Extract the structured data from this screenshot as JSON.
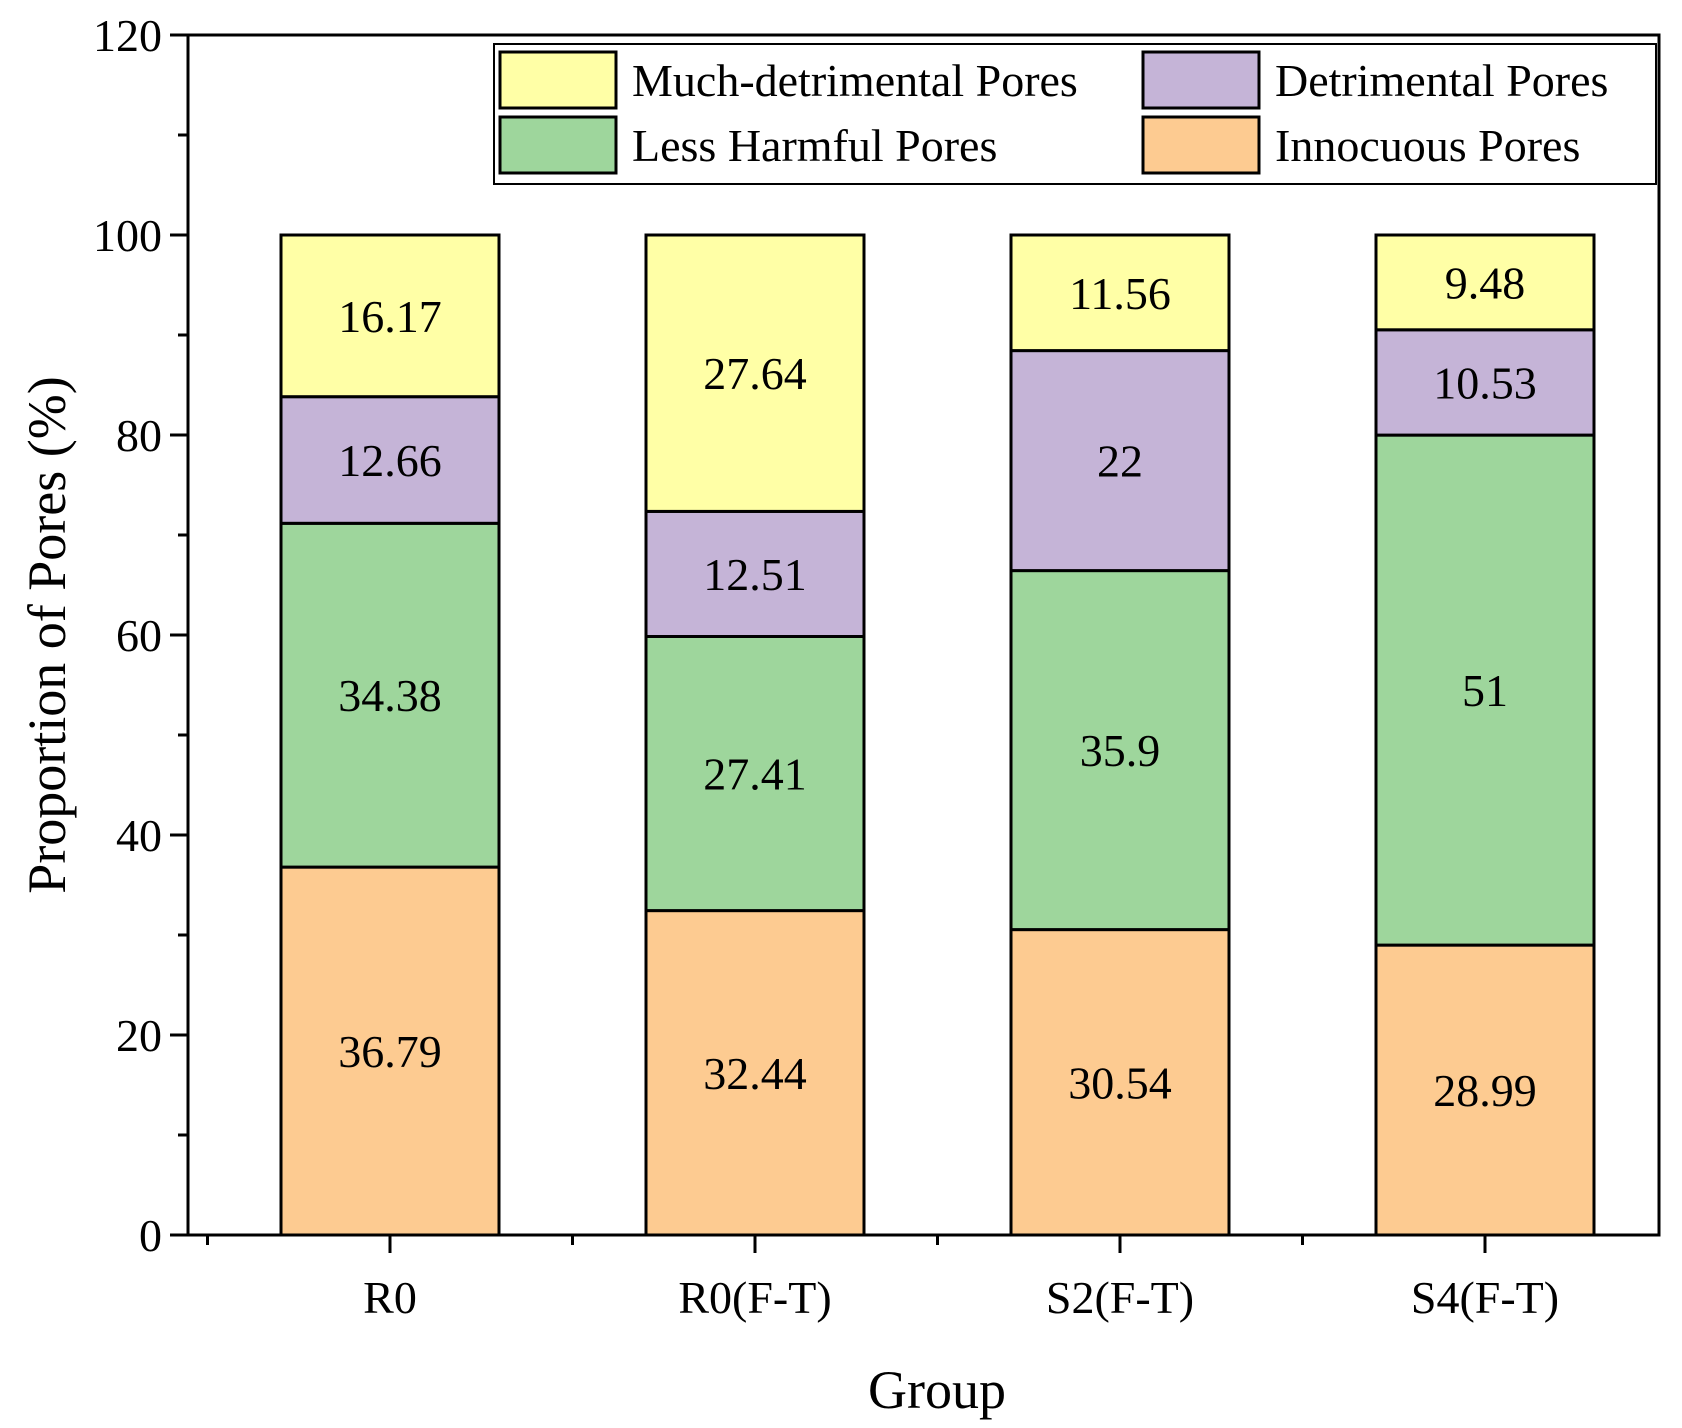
{
  "chart_data": {
    "type": "bar",
    "stacked": true,
    "categories": [
      "R0",
      "R0(F-T)",
      "S2(F-T)",
      "S4(F-T)"
    ],
    "series": [
      {
        "name": "Innocuous Pores",
        "color": "#FDCB91",
        "values": [
          36.79,
          32.44,
          30.54,
          28.99
        ]
      },
      {
        "name": "Less Harmful Pores",
        "color": "#9ED69C",
        "values": [
          34.38,
          27.41,
          35.9,
          51
        ]
      },
      {
        "name": "Detrimental Pores",
        "color": "#C5B4D7",
        "values": [
          12.66,
          12.51,
          22,
          10.53
        ]
      },
      {
        "name": "Much-detrimental Pores",
        "color": "#FFFFA6",
        "values": [
          16.17,
          27.64,
          11.56,
          9.48
        ]
      }
    ],
    "data_labels": [
      [
        "36.79",
        "32.44",
        "30.54",
        "28.99"
      ],
      [
        "34.38",
        "27.41",
        "35.9",
        "51"
      ],
      [
        "12.66",
        "12.51",
        "22",
        "10.53"
      ],
      [
        "16.17",
        "27.64",
        "11.56",
        "9.48"
      ]
    ],
    "xlabel": "Group",
    "ylabel": "Proportion of Pores (%)",
    "ylim": [
      0,
      120
    ],
    "yticks": [
      "0",
      "20",
      "40",
      "60",
      "80",
      "100",
      "120"
    ],
    "grid": false,
    "legend": {
      "placement": "top-right",
      "order": [
        "Much-detrimental Pores",
        "Detrimental Pores",
        "Less Harmful Pores",
        "Innocuous Pores"
      ]
    }
  }
}
